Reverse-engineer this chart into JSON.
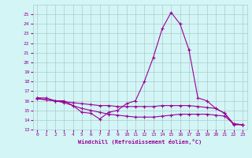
{
  "x": [
    0,
    1,
    2,
    3,
    4,
    5,
    6,
    7,
    8,
    9,
    10,
    11,
    12,
    13,
    14,
    15,
    16,
    17,
    18,
    19,
    20,
    21,
    22,
    23
  ],
  "line1": [
    16.3,
    16.3,
    16.0,
    16.0,
    15.5,
    14.8,
    14.7,
    14.1,
    14.8,
    15.0,
    15.7,
    16.0,
    18.0,
    20.5,
    23.5,
    25.2,
    24.0,
    21.3,
    16.3,
    16.0,
    15.2,
    14.7,
    13.5,
    13.5
  ],
  "line2": [
    16.3,
    16.1,
    16.0,
    15.8,
    15.5,
    15.2,
    15.0,
    14.8,
    14.6,
    14.5,
    14.4,
    14.3,
    14.3,
    14.3,
    14.4,
    14.5,
    14.6,
    14.6,
    14.6,
    14.6,
    14.5,
    14.4,
    13.6,
    13.5
  ],
  "line3": [
    16.2,
    16.1,
    16.0,
    15.9,
    15.8,
    15.7,
    15.6,
    15.5,
    15.5,
    15.4,
    15.4,
    15.4,
    15.4,
    15.4,
    15.5,
    15.5,
    15.5,
    15.5,
    15.4,
    15.3,
    15.2,
    14.7,
    13.6,
    13.5
  ],
  "line_color": "#990099",
  "bg_color": "#d4f5f5",
  "grid_color": "#aacccc",
  "xlabel": "Windchill (Refroidissement éolien,°C)",
  "ylim": [
    13,
    26
  ],
  "xlim": [
    -0.5,
    23.5
  ],
  "yticks": [
    13,
    14,
    15,
    16,
    17,
    18,
    19,
    20,
    21,
    22,
    23,
    24,
    25
  ],
  "xticks": [
    0,
    1,
    2,
    3,
    4,
    5,
    6,
    7,
    8,
    9,
    10,
    11,
    12,
    13,
    14,
    15,
    16,
    17,
    18,
    19,
    20,
    21,
    22,
    23
  ]
}
